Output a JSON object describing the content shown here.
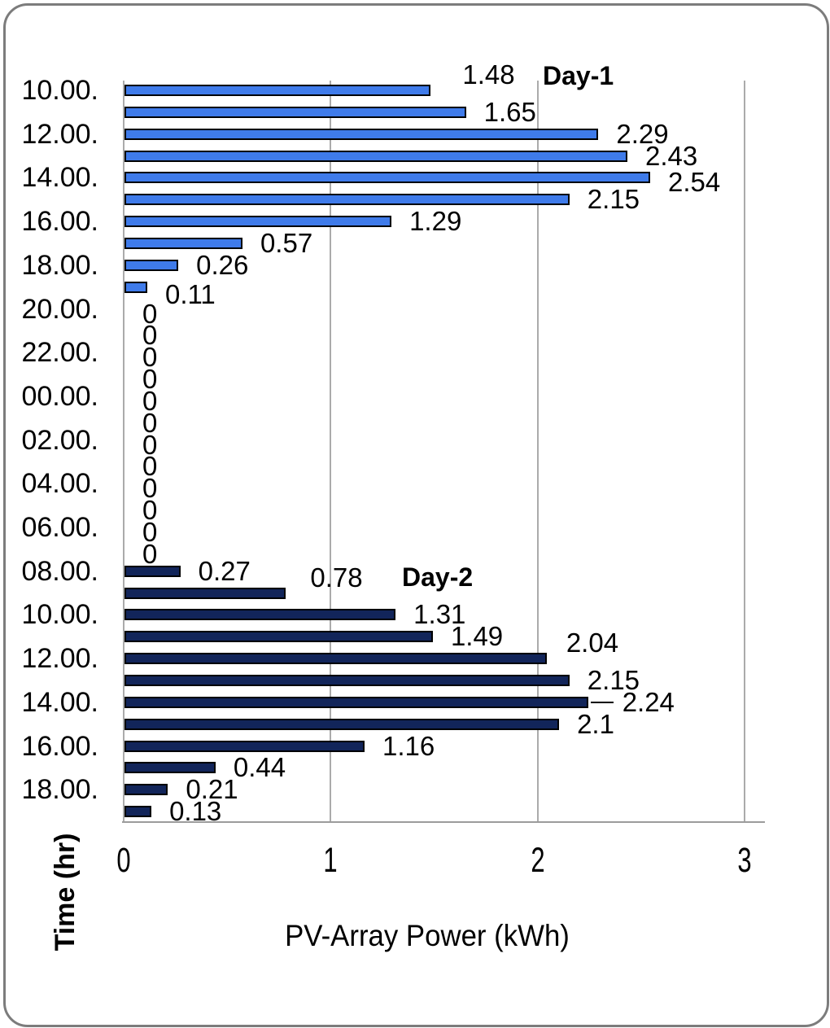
{
  "figure": {
    "background": "#ffffff",
    "border_color": "#7c7c7c"
  },
  "chart_data": {
    "type": "bar",
    "orientation": "horizontal",
    "title": "",
    "xlabel": "PV-Array Power (kWh)",
    "ylabel": "Time (hr)",
    "xlim": [
      0,
      3
    ],
    "xticks": [
      "0",
      "1",
      "2",
      "3"
    ],
    "grid": "vertical gridlines on",
    "legend_position": "none (in-plot text annotations)",
    "series": [
      {
        "name": "Day-1",
        "color": "#3f7bea",
        "outline": "#000000"
      },
      {
        "name": "Day-2",
        "color": "#12255a",
        "outline": "#000000"
      }
    ],
    "annotations": [
      {
        "text": "Day-1",
        "bold": true
      },
      {
        "text": "Day-2",
        "bold": true
      }
    ],
    "rows": [
      {
        "time": "10.00.",
        "value": 1.48,
        "label": "1.48",
        "series": "Day-1"
      },
      {
        "time": "",
        "value": 1.65,
        "label": "1.65",
        "series": "Day-1"
      },
      {
        "time": "12.00.",
        "value": 2.29,
        "label": "2.29",
        "series": "Day-1"
      },
      {
        "time": "",
        "value": 2.43,
        "label": "2.43",
        "series": "Day-1"
      },
      {
        "time": "14.00.",
        "value": 2.54,
        "label": "2.54",
        "series": "Day-1"
      },
      {
        "time": "",
        "value": 2.15,
        "label": "2.15",
        "series": "Day-1"
      },
      {
        "time": "16.00.",
        "value": 1.29,
        "label": "1.29",
        "series": "Day-1"
      },
      {
        "time": "",
        "value": 0.57,
        "label": "0.57",
        "series": "Day-1"
      },
      {
        "time": "18.00.",
        "value": 0.26,
        "label": "0.26",
        "series": "Day-1"
      },
      {
        "time": "",
        "value": 0.11,
        "label": "0.11",
        "series": "Day-1"
      },
      {
        "time": "20.00.",
        "value": 0,
        "label": "0",
        "series": "Day-1"
      },
      {
        "time": "",
        "value": 0,
        "label": "0",
        "series": "Day-1"
      },
      {
        "time": "22.00.",
        "value": 0,
        "label": "0",
        "series": "Day-1"
      },
      {
        "time": "",
        "value": 0,
        "label": "0",
        "series": "Day-1"
      },
      {
        "time": "00.00.",
        "value": 0,
        "label": "0",
        "series": "Day-1"
      },
      {
        "time": "",
        "value": 0,
        "label": "0",
        "series": "Day-1"
      },
      {
        "time": "02.00.",
        "value": 0,
        "label": "0",
        "series": "Day-1"
      },
      {
        "time": "",
        "value": 0,
        "label": "0",
        "series": "Day-1"
      },
      {
        "time": "04.00.",
        "value": 0,
        "label": "0",
        "series": "Day-1"
      },
      {
        "time": "",
        "value": 0,
        "label": "0",
        "series": "Day-1"
      },
      {
        "time": "06.00.",
        "value": 0,
        "label": "0",
        "series": "Day-1"
      },
      {
        "time": "",
        "value": 0,
        "label": "0",
        "series": "Day-1"
      },
      {
        "time": "08.00.",
        "value": 0.27,
        "label": "0.27",
        "series": "Day-2"
      },
      {
        "time": "",
        "value": 0.78,
        "label": "0.78",
        "series": "Day-2"
      },
      {
        "time": "10.00.",
        "value": 1.31,
        "label": "1.31",
        "series": "Day-2"
      },
      {
        "time": "",
        "value": 1.49,
        "label": "1.49",
        "series": "Day-2"
      },
      {
        "time": "12.00.",
        "value": 2.04,
        "label": "2.04",
        "series": "Day-2"
      },
      {
        "time": "",
        "value": 2.15,
        "label": "2.15",
        "series": "Day-2"
      },
      {
        "time": "14.00.",
        "value": 2.24,
        "label": "2.24",
        "series": "Day-2"
      },
      {
        "time": "",
        "value": 2.1,
        "label": "2.1",
        "series": "Day-2"
      },
      {
        "time": "16.00.",
        "value": 1.16,
        "label": "1.16",
        "series": "Day-2"
      },
      {
        "time": "",
        "value": 0.44,
        "label": "0.44",
        "series": "Day-2"
      },
      {
        "time": "18.00.",
        "value": 0.21,
        "label": "0.21",
        "series": "Day-2"
      },
      {
        "time": "",
        "value": 0.13,
        "label": "0.13",
        "series": "Day-2"
      }
    ]
  }
}
